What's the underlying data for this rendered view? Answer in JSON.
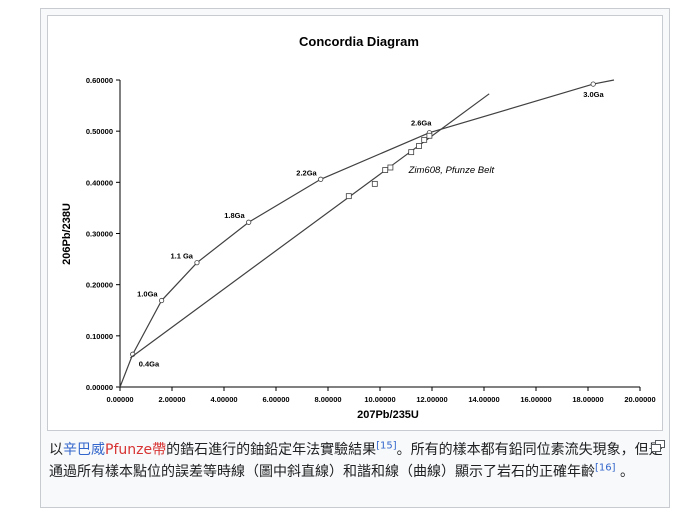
{
  "chart_data": {
    "type": "line",
    "title": "Concordia Diagram",
    "xlabel": "207Pb/235U",
    "ylabel": "206Pb/238U",
    "xlim": [
      0,
      20
    ],
    "ylim": [
      0,
      0.6
    ],
    "x_ticks": [
      0,
      2,
      4,
      6,
      8,
      10,
      12,
      14,
      16,
      18,
      20
    ],
    "y_ticks": [
      0,
      0.1,
      0.2,
      0.3,
      0.4,
      0.5,
      0.6
    ],
    "x_tick_labels": [
      "0.00000",
      "2.00000",
      "4.00000",
      "6.00000",
      "8.00000",
      "10.00000",
      "12.00000",
      "14.00000",
      "16.00000",
      "18.00000",
      "20.00000"
    ],
    "y_tick_labels": [
      "0.00000",
      "0.10000",
      "0.20000",
      "0.30000",
      "0.40000",
      "0.50000",
      "0.60000"
    ],
    "grid": false,
    "concordia": {
      "x": [
        0.0,
        0.49,
        1.6,
        2.96,
        4.95,
        7.72,
        11.9,
        18.2,
        19.0
      ],
      "y": [
        0.0,
        0.064,
        0.169,
        0.243,
        0.322,
        0.406,
        0.497,
        0.592,
        0.6
      ],
      "labels": [
        "",
        "0.4Ga",
        "1.0Ga",
        "1.1 Ga",
        "1.8Ga",
        "2.2Ga",
        "2.6Ga",
        "3.0Ga",
        ""
      ]
    },
    "discordia": {
      "x": [
        0.4,
        14.2
      ],
      "y": [
        0.057,
        0.573
      ],
      "label": "Zim608, Pfunze Belt"
    },
    "samples": {
      "x": [
        8.8,
        9.8,
        10.2,
        10.4,
        11.2,
        11.5,
        11.7,
        11.9
      ],
      "y": [
        0.373,
        0.397,
        0.424,
        0.429,
        0.459,
        0.471,
        0.483,
        0.491
      ]
    }
  },
  "caption": {
    "prefix": "以",
    "link1": "辛巴威",
    "link2": "Pfunze帶",
    "text1": "的鋯石進行的鈾鉛定年法實驗結果",
    "ref1": "[15]",
    "text2": "。所有的樣本都有鉛同位素流失現象，但是通過所有樣本點位的誤差等時線（圖中斜直線）和諧和線（曲線）顯示了岩石的正確年齡",
    "ref2": "[16]",
    "text3": " 。"
  },
  "icons": {
    "enlarge": "magnify-icon"
  }
}
